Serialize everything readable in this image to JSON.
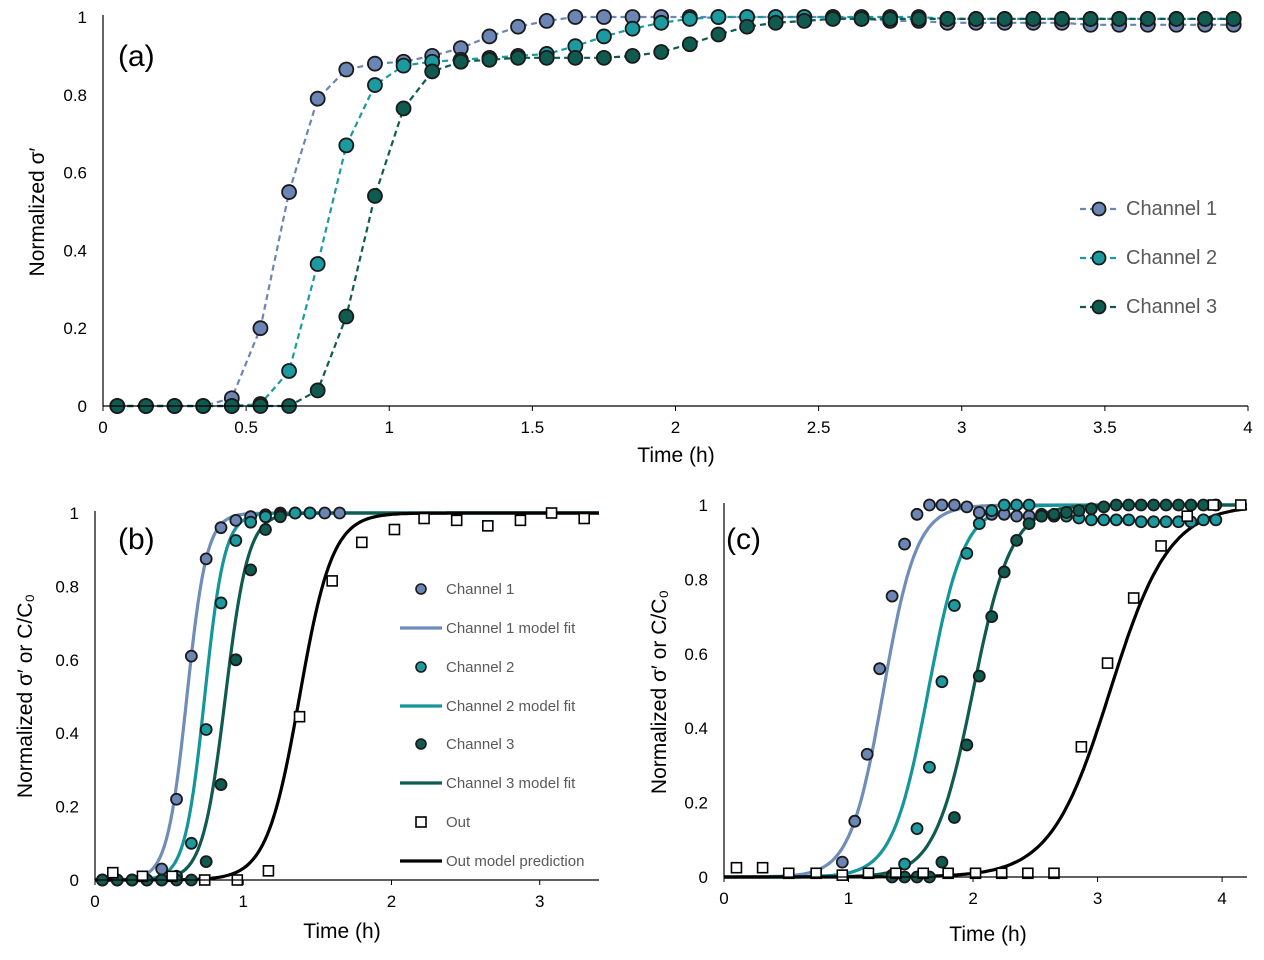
{
  "colors": {
    "ch1": "#6B86B4",
    "ch1_fit": "#6F8DB9",
    "ch2": "#1B9AA0",
    "ch2_fit": "#14969B",
    "ch3": "#0F5B50",
    "ch3_fit": "#0F5B50",
    "out": "#000000",
    "axis": "#000000"
  },
  "chart_data": [
    {
      "panel": "(a)",
      "type": "line",
      "xlabel": "Time (h)",
      "ylabel": "Normalized σ′",
      "xlim": [
        0,
        4
      ],
      "ylim": [
        0,
        1
      ],
      "xticks": [
        "0",
        "0.5",
        "1",
        "1.5",
        "2",
        "2.5",
        "3",
        "3.5",
        "4"
      ],
      "yticks": [
        "0",
        "0.2",
        "0.4",
        "0.6",
        "0.8",
        "1"
      ],
      "grid": false,
      "legend": "right",
      "series": [
        {
          "name": "Channel 1",
          "color": "ch1",
          "x": [
            0.05,
            0.15,
            0.25,
            0.35,
            0.45,
            0.55,
            0.65,
            0.75,
            0.85,
            0.95,
            1.05,
            1.15,
            1.25,
            1.35,
            1.45,
            1.55,
            1.65,
            1.75,
            1.85,
            1.95,
            2.05,
            2.15,
            2.25,
            2.35,
            2.45,
            2.55,
            2.65,
            2.75,
            2.85,
            2.95,
            3.05,
            3.15,
            3.25,
            3.35,
            3.45,
            3.55,
            3.65,
            3.75,
            3.85,
            3.95
          ],
          "y": [
            0.0,
            0.0,
            0.0,
            0.0,
            0.02,
            0.2,
            0.55,
            0.79,
            0.865,
            0.88,
            0.885,
            0.9,
            0.92,
            0.95,
            0.975,
            0.99,
            1.0,
            1.0,
            1.0,
            1.0,
            1.0,
            1.0,
            1.0,
            1.0,
            1.0,
            1.0,
            0.995,
            0.99,
            0.99,
            0.985,
            0.985,
            0.985,
            0.985,
            0.985,
            0.98,
            0.98,
            0.98,
            0.98,
            0.98,
            0.98
          ]
        },
        {
          "name": "Channel 2",
          "color": "ch2",
          "x": [
            0.05,
            0.15,
            0.25,
            0.35,
            0.45,
            0.55,
            0.65,
            0.75,
            0.85,
            0.95,
            1.05,
            1.15,
            1.25,
            1.35,
            1.45,
            1.55,
            1.65,
            1.75,
            1.85,
            1.95,
            2.05,
            2.15,
            2.25,
            2.35,
            2.45,
            2.55,
            2.65,
            2.75,
            2.85,
            2.95,
            3.05,
            3.15,
            3.25,
            3.35,
            3.45,
            3.55,
            3.65,
            3.75,
            3.85,
            3.95
          ],
          "y": [
            0.0,
            0.0,
            0.0,
            0.0,
            0.0,
            0.005,
            0.09,
            0.365,
            0.67,
            0.825,
            0.875,
            0.885,
            0.89,
            0.895,
            0.9,
            0.905,
            0.925,
            0.95,
            0.97,
            0.985,
            0.995,
            1.0,
            1.0,
            1.0,
            1.0,
            1.0,
            1.0,
            1.0,
            1.0,
            0.995,
            0.995,
            0.995,
            0.995,
            0.995,
            0.995,
            0.995,
            0.995,
            0.995,
            0.995,
            0.995
          ]
        },
        {
          "name": "Channel 3",
          "color": "ch3",
          "x": [
            0.05,
            0.15,
            0.25,
            0.35,
            0.45,
            0.55,
            0.65,
            0.75,
            0.85,
            0.95,
            1.05,
            1.15,
            1.25,
            1.35,
            1.45,
            1.55,
            1.65,
            1.75,
            1.85,
            1.95,
            2.05,
            2.15,
            2.25,
            2.35,
            2.45,
            2.55,
            2.65,
            2.75,
            2.85,
            2.95,
            3.05,
            3.15,
            3.25,
            3.35,
            3.45,
            3.55,
            3.65,
            3.75,
            3.85,
            3.95
          ],
          "y": [
            0.0,
            0.0,
            0.0,
            0.0,
            0.0,
            0.0,
            0.0,
            0.04,
            0.23,
            0.54,
            0.765,
            0.86,
            0.885,
            0.89,
            0.895,
            0.895,
            0.895,
            0.895,
            0.9,
            0.91,
            0.93,
            0.955,
            0.975,
            0.985,
            0.99,
            0.995,
            0.995,
            0.995,
            0.995,
            0.995,
            0.995,
            0.995,
            0.995,
            0.995,
            0.995,
            0.995,
            0.995,
            0.995,
            0.995,
            0.995
          ]
        }
      ]
    },
    {
      "panel": "(b)",
      "type": "scatter",
      "xlabel": "Time (h)",
      "ylabel": "Normalized σ′ or C/C₀",
      "xlim": [
        0,
        3.4
      ],
      "ylim": [
        0,
        1
      ],
      "xticks": [
        "0",
        "1",
        "2",
        "3"
      ],
      "yticks": [
        "0",
        "0.2",
        "0.4",
        "0.6",
        "0.8",
        "1"
      ],
      "grid": false,
      "legend": "center-right",
      "series": [
        {
          "name": "Channel 1",
          "color": "ch1",
          "x": [
            0.05,
            0.15,
            0.25,
            0.35,
            0.45,
            0.55,
            0.65,
            0.75,
            0.85,
            0.95,
            1.05,
            1.15,
            1.25,
            1.35,
            1.45,
            1.55,
            1.65
          ],
          "y": [
            0.0,
            0.0,
            0.0,
            0.0,
            0.03,
            0.22,
            0.61,
            0.875,
            0.96,
            0.98,
            0.99,
            0.995,
            1.0,
            1.0,
            1.0,
            1.0,
            1.0
          ]
        },
        {
          "name": "Channel 1 model fit",
          "color": "ch1_fit",
          "fit": {
            "t50": 0.62,
            "k": 15
          }
        },
        {
          "name": "Channel 2",
          "color": "ch2",
          "x": [
            0.05,
            0.15,
            0.25,
            0.35,
            0.45,
            0.55,
            0.65,
            0.75,
            0.85,
            0.95,
            1.05,
            1.15,
            1.25,
            1.35,
            1.45
          ],
          "y": [
            0.0,
            0.0,
            0.0,
            0.0,
            0.0,
            0.01,
            0.1,
            0.41,
            0.755,
            0.925,
            0.975,
            0.99,
            0.995,
            1.0,
            1.0
          ]
        },
        {
          "name": "Channel 2 model fit",
          "color": "ch2_fit",
          "fit": {
            "t50": 0.74,
            "k": 15
          }
        },
        {
          "name": "Channel 3",
          "color": "ch3",
          "x": [
            0.05,
            0.15,
            0.25,
            0.35,
            0.45,
            0.55,
            0.65,
            0.75,
            0.85,
            0.95,
            1.05,
            1.15,
            1.25
          ],
          "y": [
            0.0,
            0.0,
            0.0,
            0.0,
            0.0,
            0.0,
            0.0,
            0.05,
            0.26,
            0.6,
            0.845,
            0.955,
            0.99
          ]
        },
        {
          "name": "Channel 3 model fit",
          "color": "ch3_fit",
          "fit": {
            "t50": 0.88,
            "k": 13
          }
        },
        {
          "name": "Out",
          "color": "out",
          "marker": "square",
          "x": [
            0.12,
            0.32,
            0.52,
            0.74,
            0.96,
            1.17,
            1.38,
            1.6,
            1.8,
            2.02,
            2.22,
            2.44,
            2.65,
            2.87,
            3.08,
            3.3
          ],
          "y": [
            0.02,
            0.01,
            0.01,
            0.0,
            0.0,
            0.025,
            0.445,
            0.815,
            0.92,
            0.955,
            0.985,
            0.98,
            0.965,
            0.98,
            1.0,
            0.985
          ]
        },
        {
          "name": "Out model prediction",
          "color": "out",
          "fit": {
            "t50": 1.38,
            "k": 9
          }
        }
      ]
    },
    {
      "panel": "(c)",
      "type": "scatter",
      "xlabel": "Time (h)",
      "ylabel": "Normalized σ′ or C/C₀",
      "xlim": [
        0,
        4.2
      ],
      "ylim": [
        0,
        1
      ],
      "xticks": [
        "0",
        "1",
        "2",
        "3",
        "4"
      ],
      "yticks": [
        "0",
        "0.2",
        "0.4",
        "0.6",
        "0.8",
        "1"
      ],
      "grid": false,
      "legend": "none",
      "series": [
        {
          "color": "ch1",
          "x": [
            0.95,
            1.05,
            1.15,
            1.25,
            1.35,
            1.45,
            1.55,
            1.65,
            1.75,
            1.85,
            1.95,
            2.05,
            2.15,
            2.25,
            2.35,
            2.45,
            2.55,
            2.65
          ],
          "y": [
            0.04,
            0.15,
            0.33,
            0.56,
            0.755,
            0.895,
            0.975,
            1.0,
            1.0,
            1.0,
            0.995,
            0.98,
            0.975,
            0.975,
            0.97,
            0.97,
            0.97,
            0.97
          ]
        },
        {
          "color": "ch1_fit",
          "fit": {
            "t50": 1.28,
            "k": 7.5
          }
        },
        {
          "color": "ch2",
          "x": [
            1.35,
            1.45,
            1.55,
            1.65,
            1.75,
            1.85,
            1.95,
            2.05,
            2.15,
            2.25,
            2.35,
            2.45,
            2.55,
            2.65,
            2.75,
            2.85,
            2.95,
            3.05,
            3.15,
            3.25,
            3.35,
            3.45,
            3.55,
            3.65,
            3.75,
            3.85,
            3.95
          ],
          "y": [
            0.005,
            0.035,
            0.13,
            0.295,
            0.525,
            0.73,
            0.87,
            0.95,
            0.985,
            1.0,
            1.0,
            1.0,
            0.975,
            0.97,
            0.97,
            0.965,
            0.96,
            0.96,
            0.96,
            0.96,
            0.955,
            0.955,
            0.955,
            0.955,
            0.955,
            0.96,
            0.96
          ]
        },
        {
          "color": "ch2_fit",
          "fit": {
            "t50": 1.64,
            "k": 7
          }
        },
        {
          "color": "ch3",
          "x": [
            1.35,
            1.45,
            1.55,
            1.65,
            1.75,
            1.85,
            1.95,
            2.05,
            2.15,
            2.25,
            2.35,
            2.45,
            2.55,
            2.65,
            2.75,
            2.85,
            2.95,
            3.05,
            3.15,
            3.25,
            3.35,
            3.45,
            3.55,
            3.65,
            3.75,
            3.85,
            3.95
          ],
          "y": [
            0.0,
            0.0,
            0.0,
            0.0,
            0.04,
            0.16,
            0.355,
            0.54,
            0.7,
            0.82,
            0.905,
            0.95,
            0.97,
            0.975,
            0.98,
            0.985,
            0.99,
            0.995,
            1.0,
            1.0,
            1.0,
            1.0,
            1.0,
            1.0,
            1.0,
            1.0,
            1.0
          ]
        },
        {
          "color": "ch3_fit",
          "fit": {
            "t50": 2.0,
            "k": 6.5
          }
        },
        {
          "color": "out",
          "marker": "square",
          "x": [
            0.1,
            0.31,
            0.52,
            0.74,
            0.95,
            1.16,
            1.38,
            1.6,
            1.8,
            2.02,
            2.23,
            2.44,
            2.65,
            2.87,
            3.08,
            3.29,
            3.51,
            3.72,
            3.93,
            4.15
          ],
          "y": [
            0.025,
            0.025,
            0.01,
            0.01,
            0.005,
            0.01,
            0.01,
            0.01,
            0.01,
            0.01,
            0.01,
            0.01,
            0.01,
            0.35,
            0.575,
            0.75,
            0.89,
            0.97,
            1.0,
            1.0
          ]
        },
        {
          "color": "out",
          "fit": {
            "t50": 3.1,
            "k": 4.2
          }
        }
      ]
    }
  ]
}
